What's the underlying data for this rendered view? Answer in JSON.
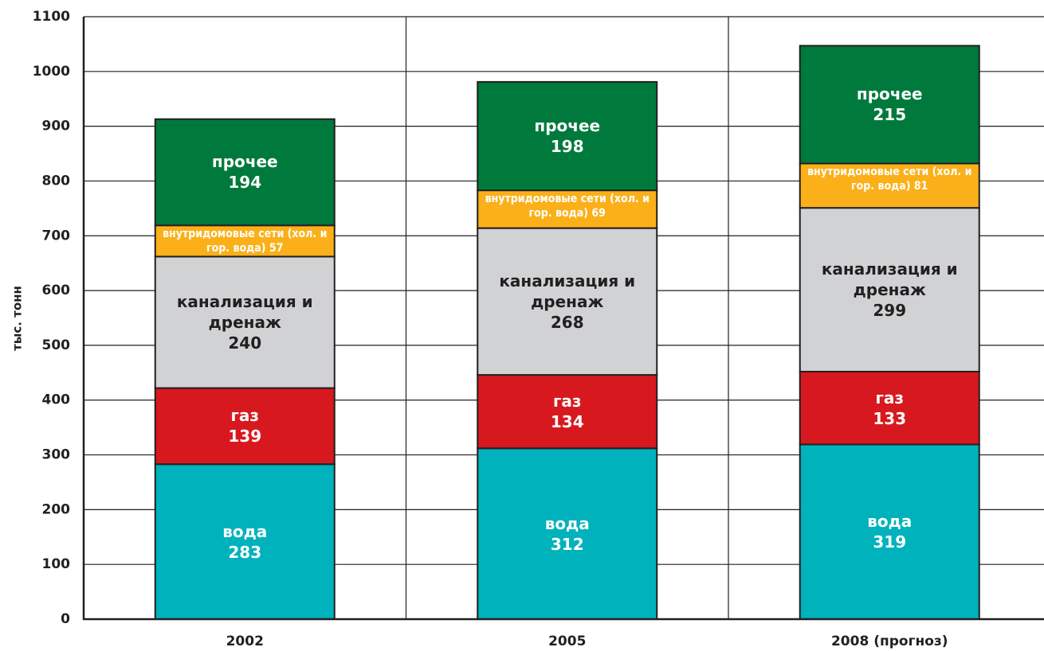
{
  "chart_data": {
    "type": "stacked_bar",
    "ylabel": "тыс. тонн",
    "categories": [
      "2002",
      "2005",
      "2008 (прогноз)"
    ],
    "series": [
      {
        "name": "вода",
        "color": "#00b2bb",
        "values": [
          283,
          312,
          319
        ]
      },
      {
        "name": "газ",
        "color": "#d7191f",
        "values": [
          139,
          134,
          133
        ]
      },
      {
        "name": "канализация и дренаж",
        "color": "#d1d2d4",
        "values": [
          240,
          268,
          299
        ]
      },
      {
        "name": "внутридомовые сети (хол. и гор. вода)",
        "color": "#fbb01a",
        "values": [
          57,
          69,
          81
        ]
      },
      {
        "name": "прочее",
        "color": "#007a3c",
        "values": [
          194,
          198,
          215
        ]
      }
    ],
    "ylim": [
      0,
      1100
    ],
    "yticks": [
      0,
      100,
      200,
      300,
      400,
      500,
      600,
      700,
      800,
      900,
      1000,
      1100
    ],
    "grid": true
  }
}
